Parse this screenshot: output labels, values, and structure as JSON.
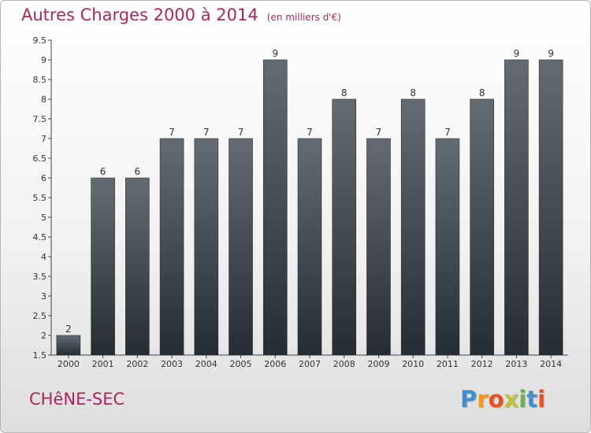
{
  "chart_data": {
    "type": "bar",
    "title": "Autres Charges 2000 à 2014",
    "subtitle": "(en milliers d'€)",
    "categories": [
      "2000",
      "2001",
      "2002",
      "2003",
      "2004",
      "2005",
      "2006",
      "2007",
      "2008",
      "2009",
      "2010",
      "2011",
      "2012",
      "2013",
      "2014"
    ],
    "values": [
      2,
      6,
      6,
      7,
      7,
      7,
      9,
      7,
      8,
      7,
      8,
      7,
      8,
      9,
      9
    ],
    "value_labels": [
      "2",
      "6",
      "6",
      "7",
      "7",
      "7",
      "9",
      "7",
      "8",
      "7",
      "8",
      "7",
      "8",
      "9",
      "9"
    ],
    "ylim": [
      1.5,
      9.5
    ],
    "yticks": [
      1.5,
      2,
      2.5,
      3,
      3.5,
      4,
      4.5,
      5,
      5.5,
      6,
      6.5,
      7,
      7.5,
      8,
      8.5,
      9,
      9.5
    ],
    "ytick_labels": [
      "1.5",
      "2",
      "2.5",
      "3",
      "3.5",
      "4",
      "4.5",
      "5",
      "5.5",
      "6",
      "6.5",
      "7",
      "7.5",
      "8",
      "8.5",
      "9",
      "9.5"
    ],
    "xlabel": "",
    "ylabel": "",
    "grid": false,
    "bar_color": "#4a5259"
  },
  "footer": {
    "place": "CHêNE-SEC",
    "logo_letters": [
      "P",
      "r",
      "o",
      "x",
      "i",
      "t",
      "i"
    ],
    "logo_colors": [
      "#3f8fce",
      "#f29a1f",
      "#e8501e",
      "#c0c43a",
      "#6cb33f",
      "#3f8fce",
      "#e8501e"
    ]
  },
  "colors": {
    "accent": "#b0245e"
  }
}
